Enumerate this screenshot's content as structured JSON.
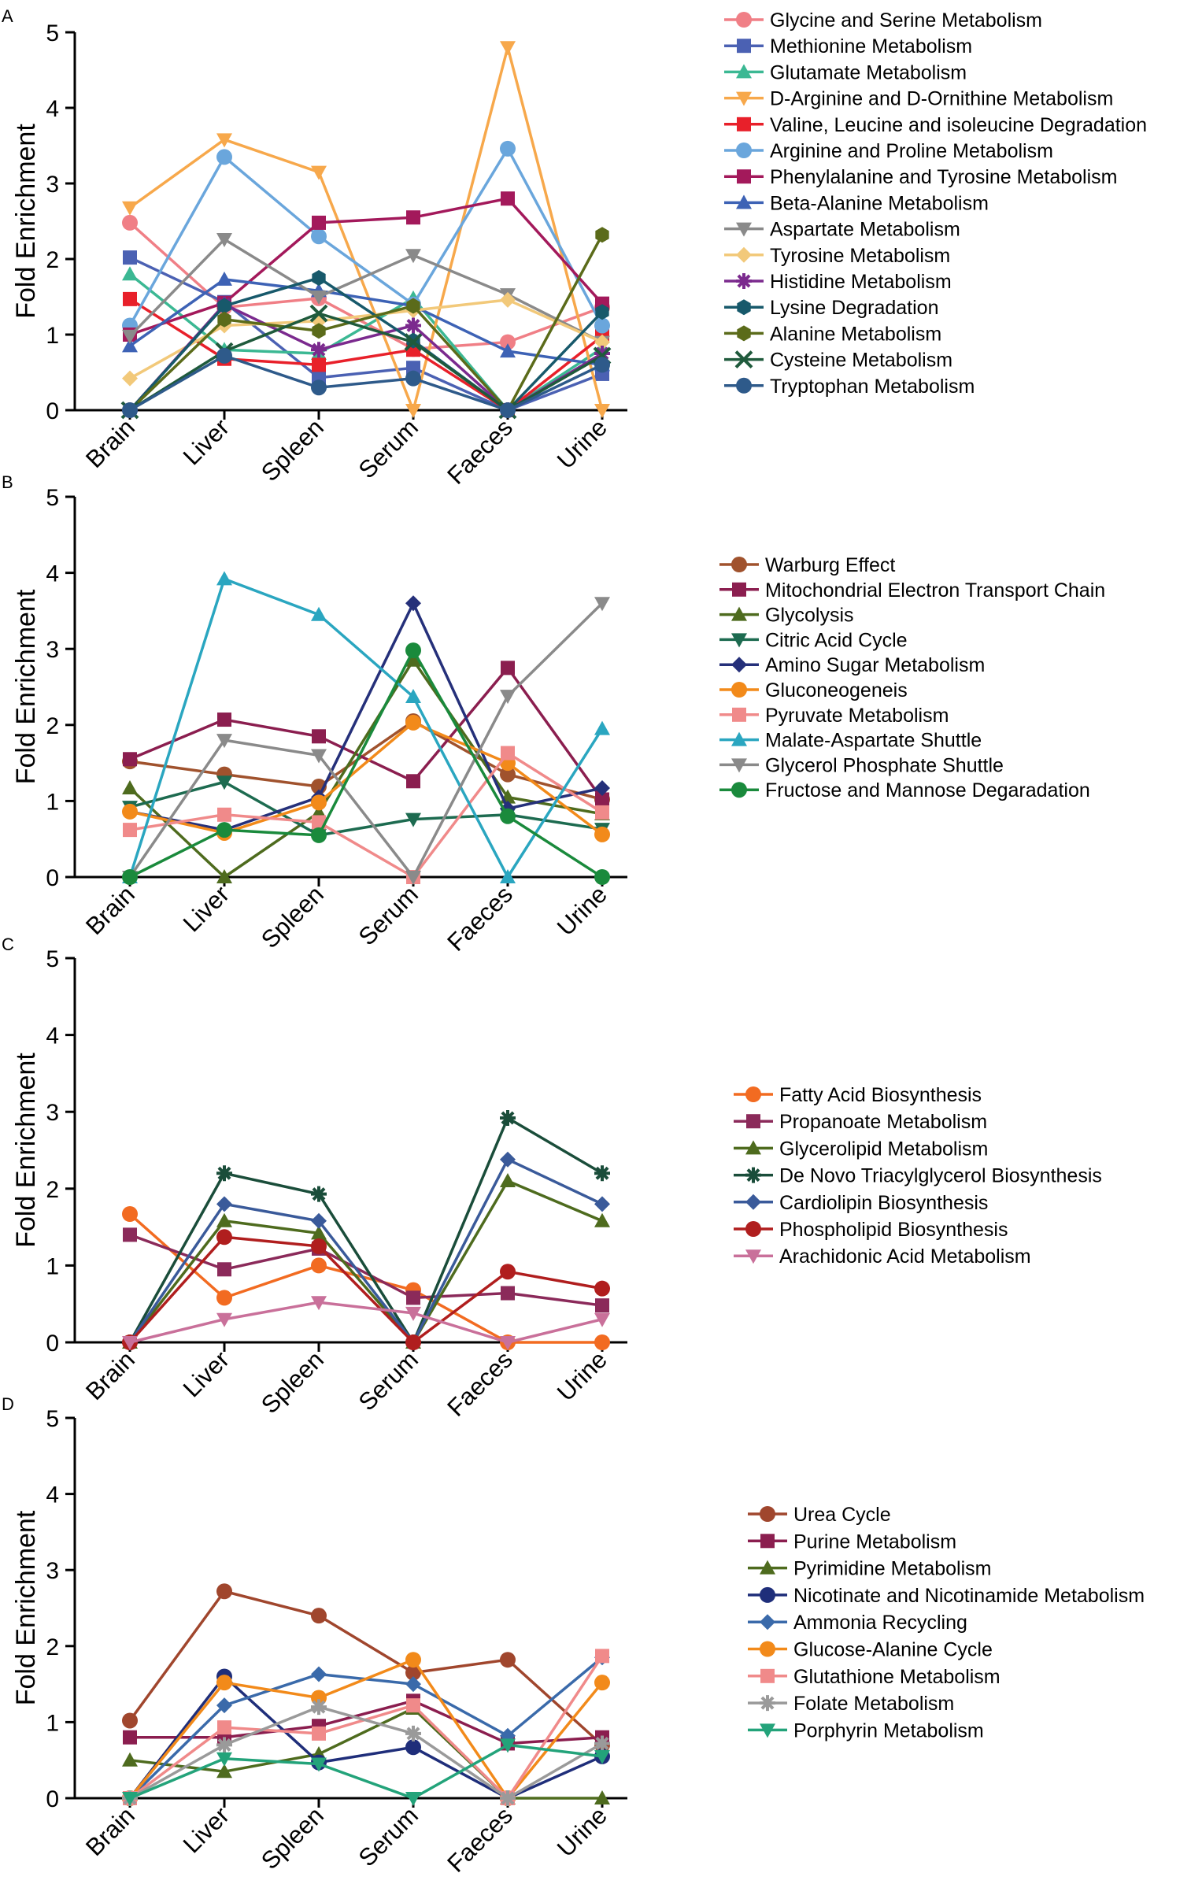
{
  "ticks": {
    "y": [
      "0",
      "1",
      "2",
      "3",
      "4",
      "5"
    ]
  },
  "chart_data": [
    {
      "type": "line",
      "panel_label": "A",
      "ylabel": "Fold Enrichment",
      "ylim": [
        0,
        5
      ],
      "categories": [
        "Brain",
        "Liver",
        "Spleen",
        "Serum",
        "Faeces",
        "Urine"
      ],
      "series": [
        {
          "name": "Glycine and Serine Metabolism",
          "color": "#f07f86",
          "marker": "circle",
          "values": [
            2.48,
            1.36,
            1.48,
            0.81,
            0.9,
            1.36
          ]
        },
        {
          "name": "Methionine Metabolism",
          "color": "#4b61b3",
          "marker": "square",
          "values": [
            2.02,
            1.43,
            0.43,
            0.56,
            0,
            0.48
          ]
        },
        {
          "name": "Glutamate Metabolism",
          "color": "#3bb893",
          "marker": "triangle-up",
          "values": [
            1.8,
            0.8,
            0.75,
            1.48,
            0,
            0.82
          ]
        },
        {
          "name": "D-Arginine and D-Ornithine Metabolism",
          "color": "#f7a84b",
          "marker": "triangle-down",
          "values": [
            2.68,
            3.58,
            3.15,
            0,
            4.8,
            0
          ]
        },
        {
          "name": "Valine, Leucine and isoleucine Degradation",
          "color": "#e8202a",
          "marker": "square",
          "values": [
            1.47,
            0.68,
            0.6,
            0.8,
            0,
            0.98
          ]
        },
        {
          "name": "Arginine and Proline Metabolism",
          "color": "#6aa6dc",
          "marker": "circle",
          "values": [
            1.12,
            3.35,
            2.3,
            1.4,
            3.46,
            1.12
          ]
        },
        {
          "name": "Phenylalanine and Tyrosine Metabolism",
          "color": "#a3195b",
          "marker": "square",
          "values": [
            1.0,
            1.42,
            2.48,
            2.55,
            2.8,
            1.41
          ]
        },
        {
          "name": "Beta-Alanine Metabolism",
          "color": "#3d62b5",
          "marker": "triangle-up",
          "values": [
            0.85,
            1.73,
            1.58,
            1.38,
            0.78,
            0.6
          ]
        },
        {
          "name": "Aspartate Metabolism",
          "color": "#8a8a8a",
          "marker": "triangle-down",
          "values": [
            0.98,
            2.26,
            1.5,
            2.05,
            1.53,
            0.9
          ]
        },
        {
          "name": "Tyrosine Metabolism",
          "color": "#f2c97a",
          "marker": "diamond",
          "values": [
            0.42,
            1.12,
            1.18,
            1.32,
            1.46,
            0.9
          ]
        },
        {
          "name": "Histidine Metabolism",
          "color": "#7b2a8e",
          "marker": "asterisk",
          "values": [
            0,
            1.4,
            0.8,
            1.12,
            0,
            0.75
          ]
        },
        {
          "name": "Lysine Degradation",
          "color": "#17596b",
          "marker": "hexagon",
          "values": [
            0,
            1.38,
            1.75,
            0.92,
            0,
            1.3
          ]
        },
        {
          "name": "Alanine Metabolism",
          "color": "#5b6b1a",
          "marker": "hexagon",
          "values": [
            0,
            1.2,
            1.05,
            1.38,
            0,
            2.32
          ]
        },
        {
          "name": "Cysteine Metabolism",
          "color": "#1f5a3c",
          "marker": "x",
          "values": [
            0,
            0.78,
            1.28,
            0.9,
            0,
            0.72
          ]
        },
        {
          "name": "Tryptophan Metabolism",
          "color": "#2e5a8a",
          "marker": "circle",
          "values": [
            0,
            0.72,
            0.3,
            0.42,
            0,
            0.6
          ]
        }
      ]
    },
    {
      "type": "line",
      "panel_label": "B",
      "ylabel": "Fold Enrichment",
      "ylim": [
        0,
        5
      ],
      "categories": [
        "Brain",
        "Liver",
        "Spleen",
        "Serum",
        "Faeces",
        "Urine"
      ],
      "series": [
        {
          "name": "Warburg Effect",
          "color": "#a0522d",
          "marker": "circle",
          "values": [
            1.52,
            1.35,
            1.19,
            2.05,
            1.35,
            1.02
          ]
        },
        {
          "name": "Mitochondrial Electron Transport Chain",
          "color": "#8b1e4f",
          "marker": "square",
          "values": [
            1.55,
            2.07,
            1.85,
            1.26,
            2.75,
            1.02
          ]
        },
        {
          "name": "Glycolysis",
          "color": "#4e6b1e",
          "marker": "triangle-up",
          "values": [
            1.17,
            0,
            0.85,
            2.85,
            1.05,
            0.83
          ]
        },
        {
          "name": "Citric Acid Cycle",
          "color": "#1d6b50",
          "marker": "triangle-down",
          "values": [
            0.92,
            1.25,
            0.55,
            0.76,
            0.82,
            0.63
          ]
        },
        {
          "name": "Amino Sugar Metabolism",
          "color": "#25307a",
          "marker": "diamond",
          "values": [
            0.86,
            0.62,
            1.05,
            3.6,
            0.9,
            1.17
          ]
        },
        {
          "name": "Gluconeogeneis",
          "color": "#f28a1a",
          "marker": "circle",
          "values": [
            0.86,
            0.58,
            0.98,
            2.03,
            1.5,
            0.56
          ]
        },
        {
          "name": "Pyruvate Metabolism",
          "color": "#f08a8a",
          "marker": "square",
          "values": [
            0.62,
            0.82,
            0.72,
            0,
            1.63,
            0.85
          ]
        },
        {
          "name": "Malate-Aspartate Shuttle",
          "color": "#2aa6c0",
          "marker": "triangle-up",
          "values": [
            0,
            3.92,
            3.45,
            2.37,
            0,
            1.95
          ]
        },
        {
          "name": "Glycerol Phosphate Shuttle",
          "color": "#8a8a8a",
          "marker": "triangle-down",
          "values": [
            0,
            1.8,
            1.6,
            0,
            2.38,
            3.6
          ]
        },
        {
          "name": "Fructose and Mannose Degaradation",
          "color": "#1a8a3c",
          "marker": "circle",
          "values": [
            0,
            0.62,
            0.55,
            2.98,
            0.8,
            0
          ]
        }
      ]
    },
    {
      "type": "line",
      "panel_label": "C",
      "ylabel": "Fold Enrichment",
      "ylim": [
        0,
        5
      ],
      "categories": [
        "Brain",
        "Liver",
        "Spleen",
        "Serum",
        "Faeces",
        "Urine"
      ],
      "series": [
        {
          "name": "Fatty Acid Biosynthesis",
          "color": "#f26b21",
          "marker": "circle",
          "values": [
            1.67,
            0.58,
            1.0,
            0.68,
            0,
            0
          ]
        },
        {
          "name": "Propanoate Metabolism",
          "color": "#8b2a5a",
          "marker": "square",
          "values": [
            1.4,
            0.95,
            1.22,
            0.58,
            0.64,
            0.48
          ]
        },
        {
          "name": "Glycerolipid Metabolism",
          "color": "#4e6b1e",
          "marker": "triangle-up",
          "values": [
            0,
            1.58,
            1.42,
            0,
            2.1,
            1.58
          ]
        },
        {
          "name": "De Novo Triacylglycerol Biosynthesis",
          "color": "#1a4d3a",
          "marker": "asterisk",
          "values": [
            0,
            2.2,
            1.93,
            0,
            2.92,
            2.2
          ]
        },
        {
          "name": "Cardiolipin Biosynthesis",
          "color": "#3a5a9a",
          "marker": "diamond",
          "values": [
            0,
            1.8,
            1.58,
            0,
            2.38,
            1.8
          ]
        },
        {
          "name": "Phospholipid Biosynthesis",
          "color": "#b01e1e",
          "marker": "circle",
          "values": [
            0,
            1.37,
            1.25,
            0,
            0.92,
            0.7
          ]
        },
        {
          "name": "Arachidonic Acid Metabolism",
          "color": "#c9709a",
          "marker": "triangle-down",
          "values": [
            0,
            0.3,
            0.52,
            0.38,
            0,
            0.3
          ]
        }
      ]
    },
    {
      "type": "line",
      "panel_label": "D",
      "ylabel": "Fold Enrichment",
      "ylim": [
        0,
        5
      ],
      "categories": [
        "Brain",
        "Liver",
        "Spleen",
        "Serum",
        "Faeces",
        "Urine"
      ],
      "series": [
        {
          "name": "Urea Cycle",
          "color": "#a0462d",
          "marker": "circle",
          "values": [
            1.02,
            2.72,
            2.4,
            1.65,
            1.82,
            0.7
          ]
        },
        {
          "name": "Purine Metabolism",
          "color": "#8b1e4f",
          "marker": "square",
          "values": [
            0.8,
            0.8,
            0.95,
            1.28,
            0.72,
            0.8
          ]
        },
        {
          "name": "Pyrimidine Metabolism",
          "color": "#4e6b1e",
          "marker": "triangle-up",
          "values": [
            0.5,
            0.35,
            0.58,
            1.18,
            0,
            0
          ]
        },
        {
          "name": "Nicotinate and Nicotinamide Metabolism",
          "color": "#1f2e7a",
          "marker": "circle",
          "values": [
            0,
            1.6,
            0.47,
            0.67,
            0,
            0.55
          ]
        },
        {
          "name": "Ammonia Recycling",
          "color": "#3a6aaa",
          "marker": "diamond",
          "values": [
            0,
            1.22,
            1.63,
            1.5,
            0.82,
            1.85
          ]
        },
        {
          "name": "Glucose-Alanine Cycle",
          "color": "#f28a1a",
          "marker": "circle",
          "values": [
            0,
            1.52,
            1.32,
            1.82,
            0,
            1.52
          ]
        },
        {
          "name": "Glutathione Metabolism",
          "color": "#f08a8a",
          "marker": "square",
          "values": [
            0,
            0.93,
            0.85,
            1.22,
            0,
            1.87
          ]
        },
        {
          "name": "Folate Metabolism",
          "color": "#9a9a9a",
          "marker": "asterisk",
          "values": [
            0,
            0.7,
            1.2,
            0.85,
            0,
            0.72
          ]
        },
        {
          "name": "Porphyrin Metabolism",
          "color": "#23a37a",
          "marker": "triangle-down",
          "values": [
            0,
            0.52,
            0.45,
            0,
            0.7,
            0.55
          ]
        }
      ]
    }
  ]
}
